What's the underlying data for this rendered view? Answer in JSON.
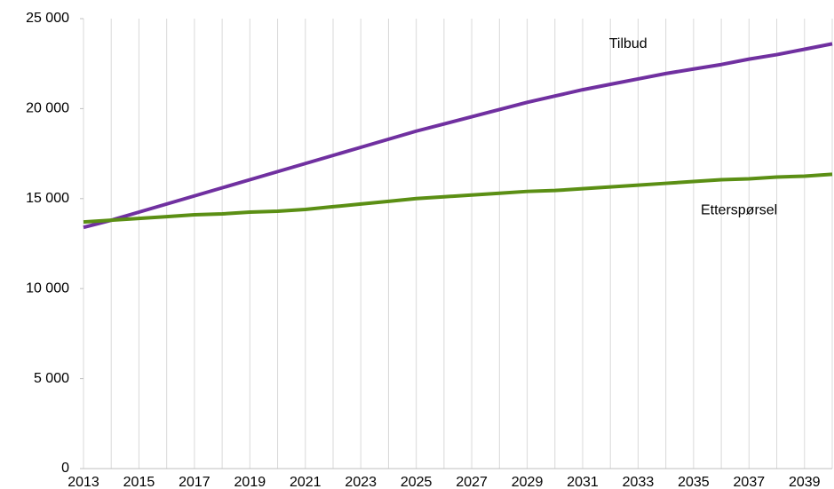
{
  "chart_data": {
    "type": "line",
    "x": [
      2013,
      2014,
      2015,
      2016,
      2017,
      2018,
      2019,
      2020,
      2021,
      2022,
      2023,
      2024,
      2025,
      2026,
      2027,
      2028,
      2029,
      2030,
      2031,
      2032,
      2033,
      2034,
      2035,
      2036,
      2037,
      2038,
      2039,
      2040
    ],
    "series": [
      {
        "name": "Tilbud",
        "color": "#7030a0",
        "values": [
          13400,
          13800,
          14250,
          14700,
          15150,
          15600,
          16050,
          16500,
          16950,
          17400,
          17850,
          18300,
          18750,
          19150,
          19550,
          19950,
          20350,
          20700,
          21050,
          21350,
          21650,
          21950,
          22200,
          22450,
          22750,
          23000,
          23300,
          23600
        ]
      },
      {
        "name": "Etterspørsel",
        "color": "#5b8f14",
        "values": [
          13700,
          13800,
          13900,
          14000,
          14100,
          14150,
          14250,
          14300,
          14400,
          14550,
          14700,
          14850,
          15000,
          15100,
          15200,
          15300,
          15400,
          15450,
          15550,
          15650,
          15750,
          15850,
          15950,
          16050,
          16100,
          16200,
          16250,
          16350
        ]
      }
    ],
    "xlim": [
      2013,
      2040
    ],
    "xticks": [
      2013,
      2015,
      2017,
      2019,
      2021,
      2023,
      2025,
      2027,
      2029,
      2031,
      2033,
      2035,
      2037,
      2039
    ],
    "minor_xticks": [
      2014,
      2016,
      2018,
      2020,
      2022,
      2024,
      2026,
      2028,
      2030,
      2032,
      2034,
      2036,
      2038,
      2040
    ],
    "ylim": [
      0,
      25000
    ],
    "yticks": [
      0,
      {
        "value": 5000,
        "label": "5 000"
      },
      {
        "value": 10000,
        "label": "10 000"
      },
      {
        "value": 15000,
        "label": "15 000"
      },
      {
        "value": 20000,
        "label": "20 000"
      },
      {
        "value": 25000,
        "label": "25 000"
      }
    ],
    "grid": true
  }
}
